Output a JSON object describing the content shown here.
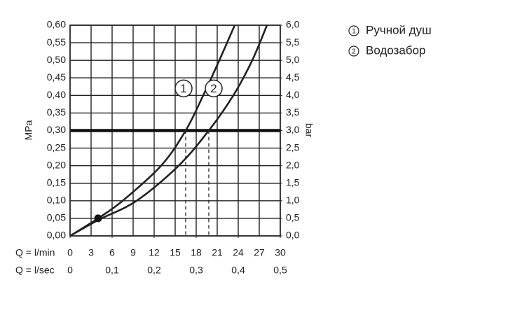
{
  "chart_data": {
    "type": "line",
    "y_label": "MPa",
    "y2_label": "bar",
    "x_label": "Q = l/min",
    "x2_label": "Q = l/sec",
    "series": [
      {
        "name": "Ручной душ",
        "label": "1",
        "color": "#222222",
        "x": [
          0,
          4,
          7.5,
          13,
          16.5,
          19,
          21.3,
          23.5
        ],
        "values": [
          0,
          0.05,
          0.1,
          0.2,
          0.3,
          0.4,
          0.5,
          0.6
        ]
      },
      {
        "name": "Водозабор",
        "label": "2",
        "color": "#222222",
        "x": [
          0,
          4,
          9.5,
          15.5,
          19.8,
          23.3,
          26,
          28.1
        ],
        "values": [
          0,
          0.045,
          0.1,
          0.2,
          0.3,
          0.4,
          0.5,
          0.6
        ]
      }
    ],
    "marker": {
      "x": 4,
      "y": 0.05
    },
    "reference_y": 0.3,
    "drop_lines": [
      16.5,
      19.8
    ],
    "xlim": [
      0,
      30
    ],
    "xticks": [
      0,
      3,
      6,
      9,
      12,
      15,
      18,
      21,
      24,
      27,
      30
    ],
    "x2lim": [
      0,
      0.5
    ],
    "x2ticks": [
      0,
      {
        "value": 0.1,
        "label": "0,1"
      },
      {
        "value": 0.2,
        "label": "0,2"
      },
      {
        "value": 0.3,
        "label": "0,3"
      },
      {
        "value": 0.4,
        "label": "0,4"
      },
      {
        "value": 0.5,
        "label": "0,5"
      }
    ],
    "ylim": [
      0,
      0.6
    ],
    "yticks": [
      {
        "value": 0,
        "label": "0,00"
      },
      {
        "value": 0.05,
        "label": "0,05"
      },
      {
        "value": 0.1,
        "label": "0,10"
      },
      {
        "value": 0.15,
        "label": "0,15"
      },
      {
        "value": 0.2,
        "label": "0,20"
      },
      {
        "value": 0.25,
        "label": "0,25"
      },
      {
        "value": 0.3,
        "label": "0,30"
      },
      {
        "value": 0.35,
        "label": "0,35"
      },
      {
        "value": 0.4,
        "label": "0,40"
      },
      {
        "value": 0.45,
        "label": "0,45"
      },
      {
        "value": 0.5,
        "label": "0,50"
      },
      {
        "value": 0.55,
        "label": "0,55"
      },
      {
        "value": 0.6,
        "label": "0,60"
      }
    ],
    "y2lim": [
      0,
      6
    ],
    "y2ticks": [
      {
        "value": 0,
        "label": "0,0"
      },
      {
        "value": 0.5,
        "label": "0,5"
      },
      {
        "value": 1,
        "label": "1,0"
      },
      {
        "value": 1.5,
        "label": "1,5"
      },
      {
        "value": 2,
        "label": "2,0"
      },
      {
        "value": 2.5,
        "label": "2,5"
      },
      {
        "value": 3,
        "label": "3,0"
      },
      {
        "value": 3.5,
        "label": "3,5"
      },
      {
        "value": 4,
        "label": "4,0"
      },
      {
        "value": 4.5,
        "label": "4,5"
      },
      {
        "value": 5,
        "label": "5,0"
      },
      {
        "value": 5.5,
        "label": "5,5"
      },
      {
        "value": 6,
        "label": "6,0"
      }
    ],
    "grid": true
  }
}
